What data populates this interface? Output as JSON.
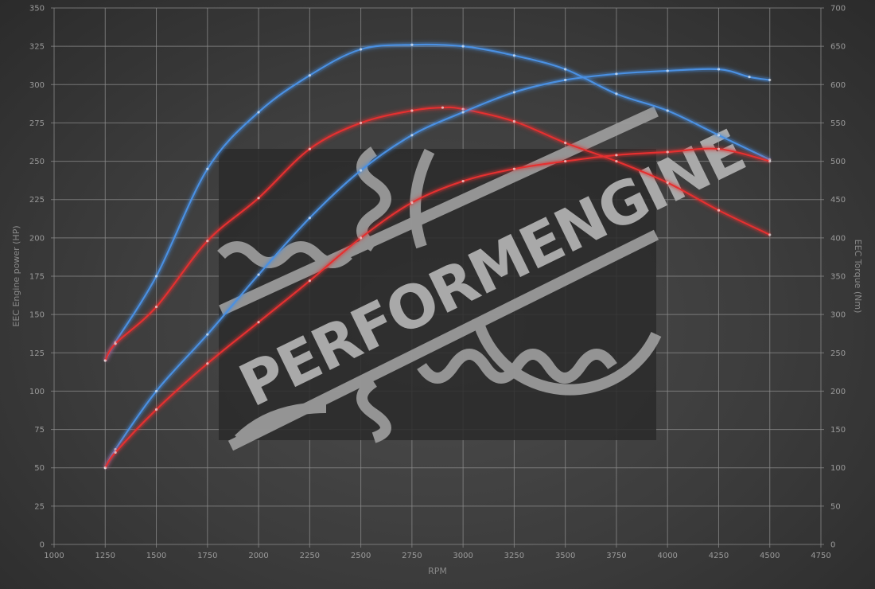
{
  "chart_data": {
    "type": "line",
    "title": "",
    "xlabel": "RPM",
    "ylabel_left": "EEC Engine power (HP)",
    "ylabel_right": "EEC Torque (Nm)",
    "xlim": [
      1000,
      4750
    ],
    "ylim_left": [
      0,
      350
    ],
    "ylim_right": [
      0,
      700
    ],
    "x_ticks": [
      1000,
      1250,
      1500,
      1750,
      2000,
      2250,
      2500,
      2750,
      3000,
      3250,
      3500,
      3750,
      4000,
      4250,
      4500,
      4750
    ],
    "y_left_ticks": [
      0,
      25,
      50,
      75,
      100,
      125,
      150,
      175,
      200,
      225,
      250,
      275,
      300,
      325,
      350
    ],
    "y_right_ticks": [
      0,
      50,
      100,
      150,
      200,
      250,
      300,
      350,
      400,
      450,
      500,
      550,
      600,
      650,
      700
    ],
    "grid": true,
    "legend": "none",
    "series": [
      {
        "axis": "right",
        "color": "#4a90e2",
        "x": [
          1250,
          1300,
          1500,
          1750,
          2000,
          2250,
          2500,
          2750,
          3000,
          3250,
          3500,
          3750,
          4000,
          4250,
          4500
        ],
        "values": [
          240,
          264,
          350,
          490,
          564,
          612,
          646,
          652,
          650,
          638,
          620,
          588,
          566,
          534,
          502
        ]
      },
      {
        "axis": "right",
        "color": "#e53030",
        "x": [
          1250,
          1300,
          1500,
          1750,
          2000,
          2250,
          2500,
          2750,
          2900,
          3000,
          3250,
          3500,
          3750,
          4000,
          4250,
          4500
        ],
        "values": [
          240,
          262,
          310,
          396,
          452,
          516,
          550,
          566,
          570,
          568,
          552,
          524,
          500,
          472,
          436,
          404
        ]
      },
      {
        "axis": "left",
        "color": "#4a90e2",
        "x": [
          1250,
          1300,
          1500,
          1750,
          2000,
          2250,
          2500,
          2750,
          3000,
          3250,
          3500,
          3750,
          4000,
          4250,
          4400,
          4500
        ],
        "values": [
          50,
          62,
          100,
          137,
          176,
          213,
          244,
          267,
          282,
          295,
          303,
          307,
          309,
          310,
          305,
          303
        ]
      },
      {
        "axis": "left",
        "color": "#e53030",
        "x": [
          1250,
          1300,
          1500,
          1750,
          2000,
          2250,
          2500,
          2750,
          3000,
          3250,
          3500,
          3750,
          4000,
          4250,
          4500
        ],
        "values": [
          50,
          60,
          88,
          118,
          145,
          172,
          200,
          223,
          237,
          245,
          250,
          254,
          256,
          258,
          250
        ]
      }
    ]
  },
  "watermark": {
    "text": "PERFORMENGINE"
  }
}
